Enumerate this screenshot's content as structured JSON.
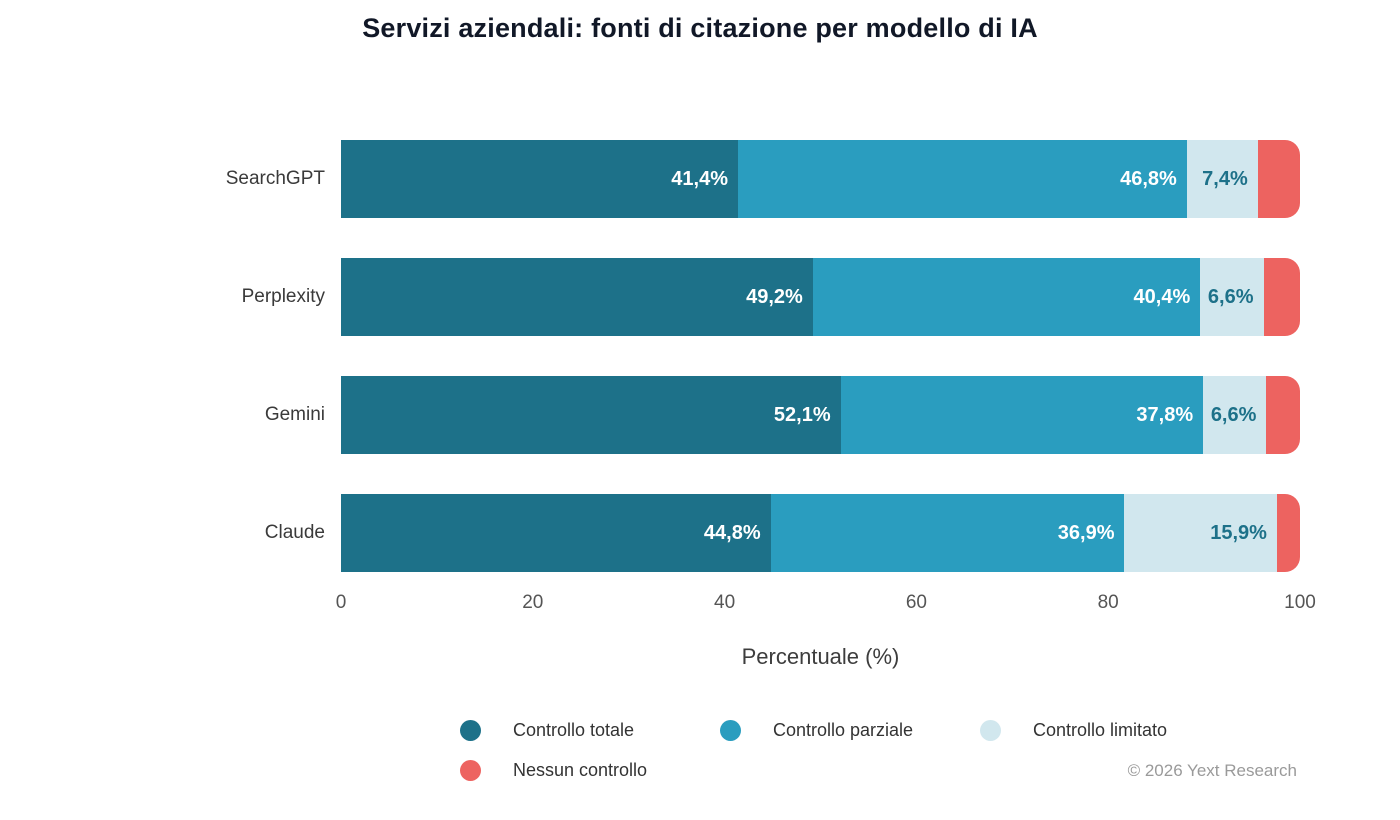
{
  "title": "Servizi aziendali: fonti di citazione per modello di IA",
  "chart_data": {
    "type": "bar",
    "orientation": "horizontal",
    "stacked": true,
    "title": "Servizi aziendali: fonti di citazione per modello di IA",
    "categories": [
      "SearchGPT",
      "Perplexity",
      "Gemini",
      "Claude"
    ],
    "series": [
      {
        "name": "Controllo totale",
        "color": "#1d7189",
        "label_color": "#ffffff",
        "values": [
          41.4,
          49.2,
          52.1,
          44.8
        ],
        "display_labels": [
          "41,4%",
          "49,2%",
          "52,1%",
          "44,8%"
        ]
      },
      {
        "name": "Controllo parziale",
        "color": "#2a9dbf",
        "label_color": "#ffffff",
        "values": [
          46.8,
          40.4,
          37.8,
          36.9
        ],
        "display_labels": [
          "46,8%",
          "40,4%",
          "37,8%",
          "36,9%"
        ]
      },
      {
        "name": "Controllo limitato",
        "color": "#d1e7ee",
        "label_color": "#1d7189",
        "values": [
          7.4,
          6.6,
          6.6,
          15.9
        ],
        "display_labels": [
          "7,4%",
          "6,6%",
          "6,6%",
          "15,9%"
        ]
      },
      {
        "name": "Nessun controllo",
        "color": "#ed6360",
        "label_color": "#ffffff",
        "values": [
          4.4,
          3.8,
          3.5,
          2.4
        ],
        "display_labels": [
          "",
          "",
          "",
          ""
        ]
      }
    ],
    "xlabel": "Percentuale (%)",
    "x_ticks": [
      "0",
      "20",
      "40",
      "60",
      "80",
      "100"
    ],
    "xlim": [
      0,
      100
    ],
    "grid": false,
    "legend_position": "bottom"
  },
  "footer": {
    "credit": "© 2026 Yext Research"
  }
}
